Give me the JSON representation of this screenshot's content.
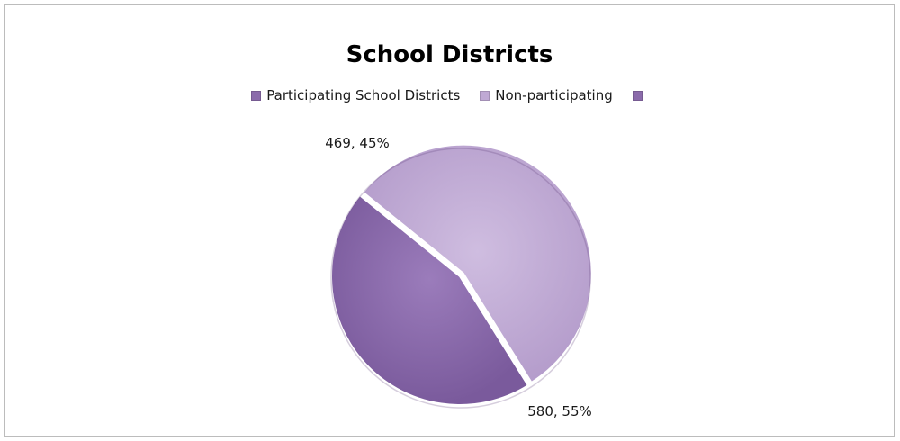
{
  "chart_data": {
    "type": "pie",
    "title": "School Districts",
    "legend_position": "top",
    "slices": [
      {
        "name": "Participating School Districts",
        "value": 469,
        "percent": "45%",
        "label": "469, 45%",
        "color": "#8b6bab"
      },
      {
        "name": "Non-participating",
        "value": 580,
        "percent": "55%",
        "label": "580, 55%",
        "color": "#bfa9d4"
      }
    ],
    "legend": [
      {
        "label": "Participating School Districts",
        "color": "#8b6bab"
      },
      {
        "label": "Non-participating",
        "color": "#bfa9d4"
      },
      {
        "label": "",
        "color": "#8b6bab"
      }
    ]
  }
}
